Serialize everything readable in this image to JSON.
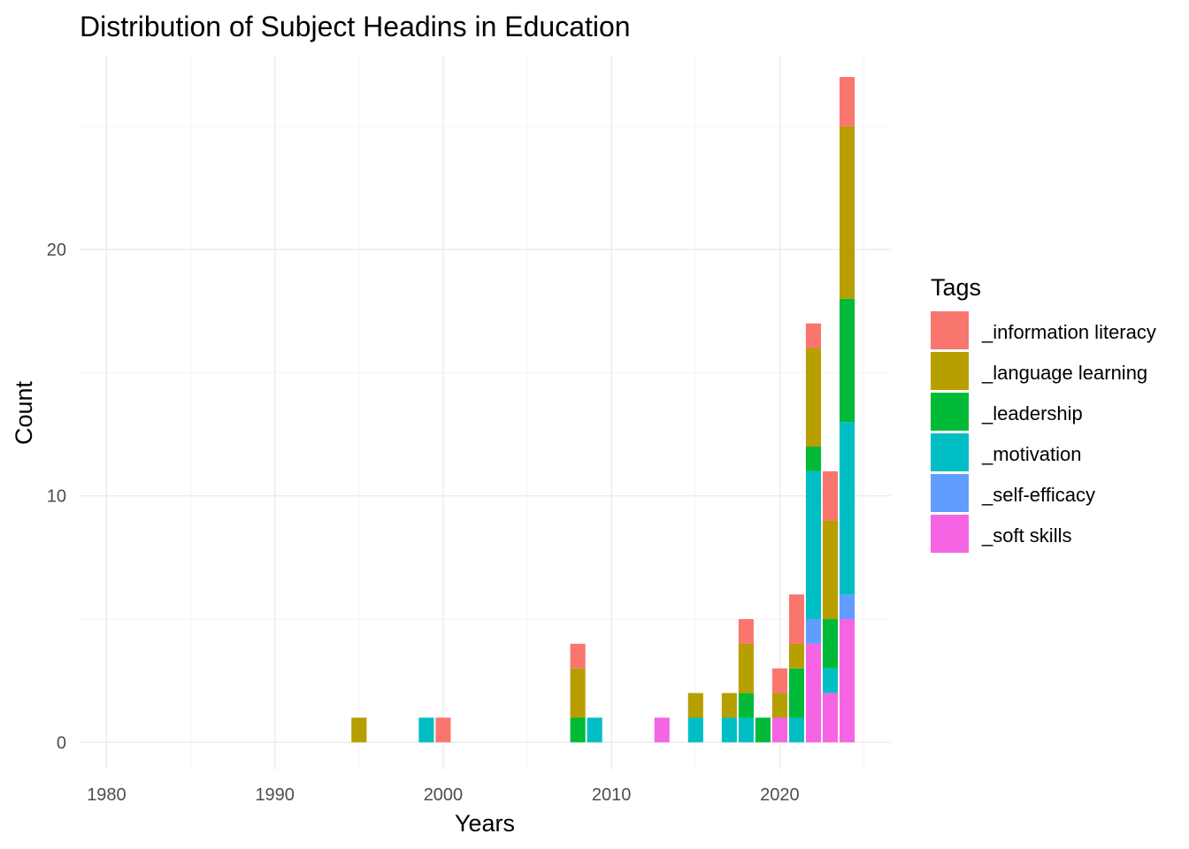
{
  "chart_data": {
    "type": "bar",
    "stacked": true,
    "title": "Distribution of Subject Headins in Education",
    "xlabel": "Years",
    "ylabel": "Count",
    "xlim": [
      1978.4,
      1026.6
    ],
    "ylim": [
      -1.1,
      27.9
    ],
    "x_ticks": [
      1980,
      1990,
      2000,
      2010,
      2020
    ],
    "y_ticks": [
      0,
      10,
      20
    ],
    "grid": true,
    "legend": {
      "title": "Tags",
      "position": "right",
      "entries": [
        {
          "name": "_information literacy",
          "color": "#F8766D"
        },
        {
          "name": "_language learning",
          "color": "#B79F00"
        },
        {
          "name": "_leadership",
          "color": "#00BA38"
        },
        {
          "name": "_motivation",
          "color": "#00BFC4"
        },
        {
          "name": "_self-efficacy",
          "color": "#619CFF"
        },
        {
          "name": "_soft skills",
          "color": "#F564E3"
        }
      ]
    },
    "stack_order_bottom_to_top": [
      "_soft skills",
      "_self-efficacy",
      "_motivation",
      "_leadership",
      "_language learning",
      "_information literacy"
    ],
    "bars": [
      {
        "x": 1995,
        "counts": {
          "_language learning": 1
        }
      },
      {
        "x": 1999,
        "counts": {
          "_motivation": 1
        }
      },
      {
        "x": 2000,
        "counts": {
          "_information literacy": 1
        }
      },
      {
        "x": 2008,
        "counts": {
          "_leadership": 1,
          "_language learning": 2,
          "_information literacy": 1
        }
      },
      {
        "x": 2009,
        "counts": {
          "_motivation": 1
        }
      },
      {
        "x": 2013,
        "counts": {
          "_soft skills": 1
        }
      },
      {
        "x": 2015,
        "counts": {
          "_motivation": 1,
          "_language learning": 1
        }
      },
      {
        "x": 2017,
        "counts": {
          "_motivation": 1,
          "_language learning": 1
        }
      },
      {
        "x": 2018,
        "counts": {
          "_motivation": 1,
          "_leadership": 1,
          "_language learning": 2,
          "_information literacy": 1
        }
      },
      {
        "x": 2019,
        "counts": {
          "_leadership": 1
        }
      },
      {
        "x": 2020,
        "counts": {
          "_soft skills": 1,
          "_language learning": 1,
          "_information literacy": 1
        }
      },
      {
        "x": 2021,
        "counts": {
          "_motivation": 1,
          "_leadership": 2,
          "_language learning": 1,
          "_information literacy": 2
        }
      },
      {
        "x": 2022,
        "counts": {
          "_soft skills": 4,
          "_self-efficacy": 1,
          "_motivation": 6,
          "_leadership": 1,
          "_language learning": 4,
          "_information literacy": 1
        }
      },
      {
        "x": 2023,
        "counts": {
          "_soft skills": 2,
          "_motivation": 1,
          "_leadership": 2,
          "_language learning": 4,
          "_information literacy": 2
        }
      },
      {
        "x": 2024,
        "counts": {
          "_soft skills": 5,
          "_self-efficacy": 1,
          "_motivation": 7,
          "_leadership": 5,
          "_language learning": 7,
          "_information literacy": 2
        }
      }
    ]
  }
}
